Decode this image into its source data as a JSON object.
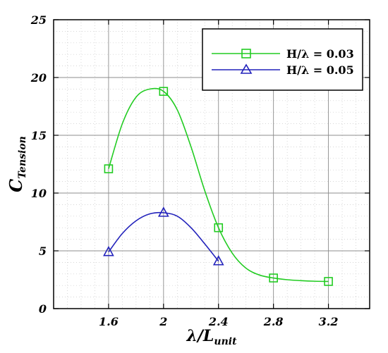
{
  "chart_data": {
    "type": "line",
    "xlabel_main": "λ/L",
    "xlabel_sub": "unit",
    "ylabel_main": "C",
    "ylabel_sub": "Tension",
    "xlim": [
      1.2,
      3.5
    ],
    "ylim": [
      0,
      25
    ],
    "xticks": [
      1.6,
      2,
      2.4,
      2.8,
      3.2
    ],
    "xtick_labels": [
      "1.6",
      "2",
      "2.4",
      "2.8",
      "3.2"
    ],
    "yticks": [
      0,
      5,
      10,
      15,
      20,
      25
    ],
    "ytick_labels": [
      "0",
      "5",
      "10",
      "15",
      "20",
      "25"
    ],
    "grid": true,
    "legend_position": "top-right",
    "series": [
      {
        "name": "H/λ = 0.03",
        "color": "#22cc22",
        "marker": "square",
        "x": [
          1.6,
          2.0,
          2.4,
          2.8,
          3.2
        ],
        "y": [
          12.1,
          18.8,
          7.0,
          2.65,
          2.35
        ],
        "curve": [
          [
            1.6,
            12.1
          ],
          [
            1.7,
            16.0
          ],
          [
            1.8,
            18.3
          ],
          [
            1.9,
            19.0
          ],
          [
            2.0,
            18.8
          ],
          [
            2.1,
            17.2
          ],
          [
            2.2,
            14.0
          ],
          [
            2.3,
            10.2
          ],
          [
            2.4,
            7.0
          ],
          [
            2.5,
            4.8
          ],
          [
            2.6,
            3.5
          ],
          [
            2.7,
            2.9
          ],
          [
            2.8,
            2.65
          ],
          [
            2.9,
            2.5
          ],
          [
            3.0,
            2.42
          ],
          [
            3.1,
            2.37
          ],
          [
            3.2,
            2.35
          ]
        ]
      },
      {
        "name": "H/λ = 0.05",
        "color": "#2222bb",
        "marker": "triangle",
        "x": [
          1.6,
          2.0,
          2.4
        ],
        "y": [
          4.9,
          8.3,
          4.1
        ],
        "curve": [
          [
            1.6,
            4.9
          ],
          [
            1.7,
            6.5
          ],
          [
            1.8,
            7.6
          ],
          [
            1.9,
            8.2
          ],
          [
            2.0,
            8.3
          ],
          [
            2.1,
            8.0
          ],
          [
            2.2,
            7.0
          ],
          [
            2.3,
            5.6
          ],
          [
            2.4,
            4.1
          ]
        ]
      }
    ]
  }
}
